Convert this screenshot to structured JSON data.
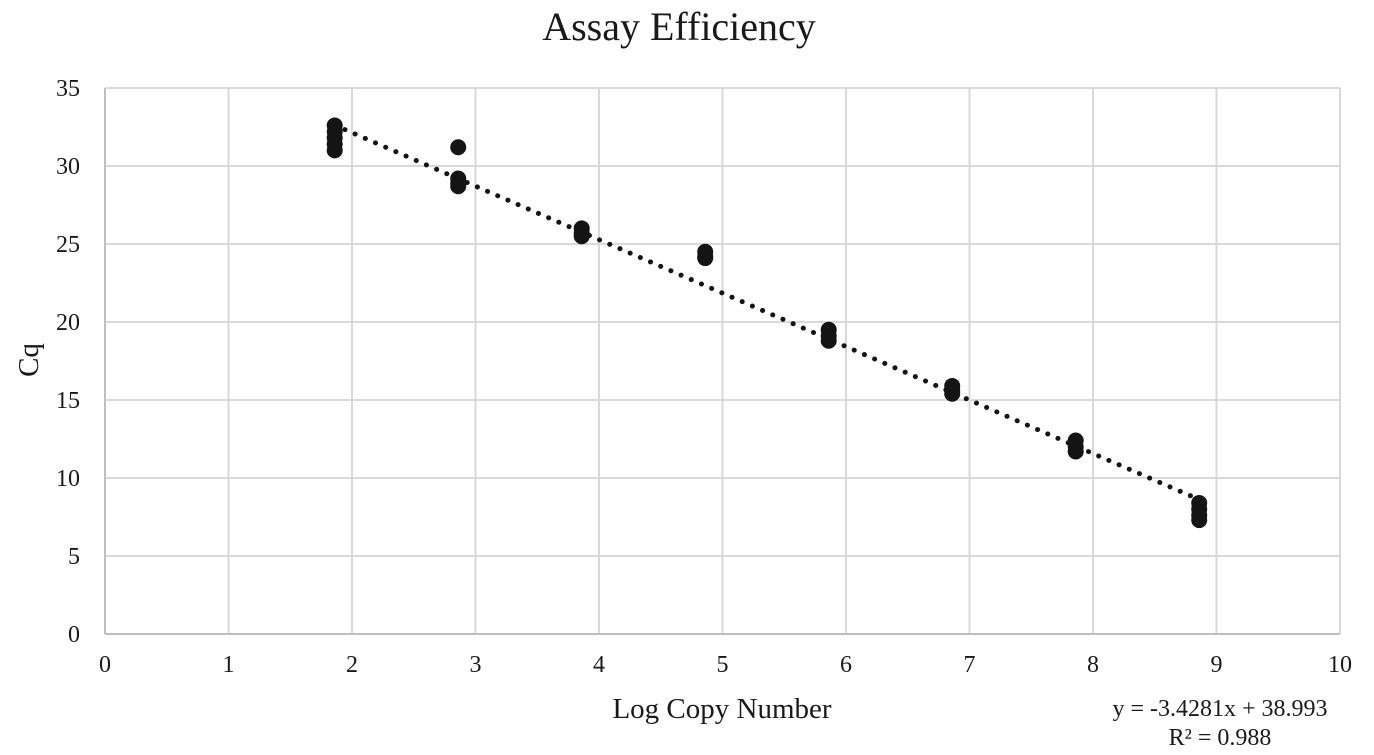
{
  "chart_data": {
    "type": "scatter",
    "title": "Assay Efficiency",
    "xlabel": "Log Copy Number",
    "ylabel": "Cq",
    "xlim": [
      0,
      10
    ],
    "ylim": [
      0,
      35
    ],
    "x_ticks": [
      0,
      1,
      2,
      3,
      4,
      5,
      6,
      7,
      8,
      9,
      10
    ],
    "y_ticks": [
      0,
      5,
      10,
      15,
      20,
      25,
      30,
      35
    ],
    "grid": true,
    "legend": "none",
    "marker_color": "#141414",
    "grid_color": "#d9d9d9",
    "series": [
      {
        "points": [
          [
            1.86,
            32.6
          ],
          [
            1.86,
            32.2
          ],
          [
            1.86,
            31.8
          ],
          [
            1.86,
            31.4
          ],
          [
            1.86,
            31.0
          ],
          [
            2.86,
            31.2
          ],
          [
            2.86,
            29.2
          ],
          [
            2.86,
            28.9
          ],
          [
            2.86,
            28.7
          ],
          [
            3.86,
            26.0
          ],
          [
            3.86,
            25.7
          ],
          [
            3.86,
            25.5
          ],
          [
            4.86,
            24.5
          ],
          [
            4.86,
            24.2
          ],
          [
            4.86,
            24.1
          ],
          [
            5.86,
            19.5
          ],
          [
            5.86,
            19.1
          ],
          [
            5.86,
            18.8
          ],
          [
            6.86,
            15.9
          ],
          [
            6.86,
            15.6
          ],
          [
            6.86,
            15.4
          ],
          [
            7.86,
            12.4
          ],
          [
            7.86,
            12.0
          ],
          [
            7.86,
            11.7
          ],
          [
            8.86,
            8.4
          ],
          [
            8.86,
            8.0
          ],
          [
            8.86,
            7.6
          ],
          [
            8.86,
            7.3
          ]
        ]
      }
    ],
    "trendline": {
      "type": "linear",
      "style": "dotted",
      "slope": -3.4281,
      "intercept": 38.993,
      "x_range": [
        1.86,
        8.86
      ],
      "equation_text": "y = -3.4281x + 38.993",
      "r2_text": "R² = 0.988"
    }
  }
}
